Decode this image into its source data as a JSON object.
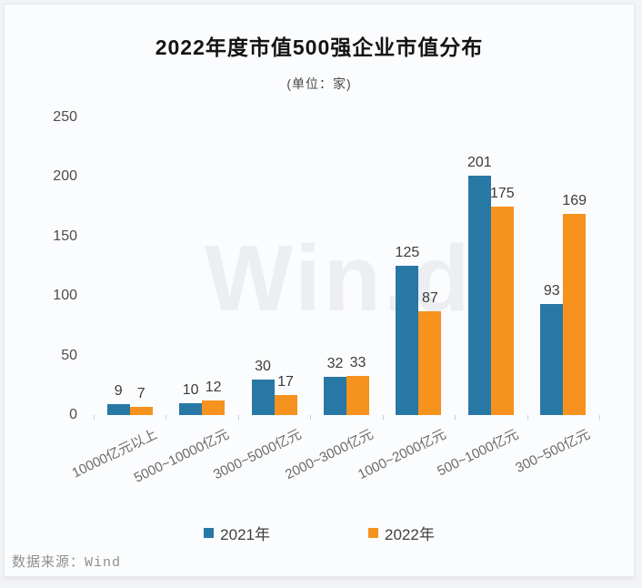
{
  "title": "2022年度市值500强企业市值分布",
  "subtitle": "(单位：家)",
  "watermark": "Win.d",
  "source": "数据来源：Wind",
  "chart_data": {
    "type": "bar",
    "title": "2022年度市值500强企业市值分布",
    "subtitle": "(单位：家)",
    "unit": "家",
    "categories": [
      "10000亿元以上",
      "5000~10000亿元",
      "3000~5000亿元",
      "2000~3000亿元",
      "1000~2000亿元",
      "500~1000亿元",
      "300~500亿元"
    ],
    "series": [
      {
        "name": "2021年",
        "color": "#2878a5",
        "values": [
          9,
          10,
          30,
          32,
          125,
          201,
          93
        ]
      },
      {
        "name": "2022年",
        "color": "#f6921e",
        "values": [
          7,
          12,
          17,
          33,
          87,
          175,
          169
        ]
      }
    ],
    "ylim": [
      0,
      250
    ],
    "yticks": [
      0,
      50,
      100,
      150,
      200,
      250
    ],
    "grid": false,
    "legend_position": "bottom",
    "source_label": "数据来源：Wind"
  }
}
